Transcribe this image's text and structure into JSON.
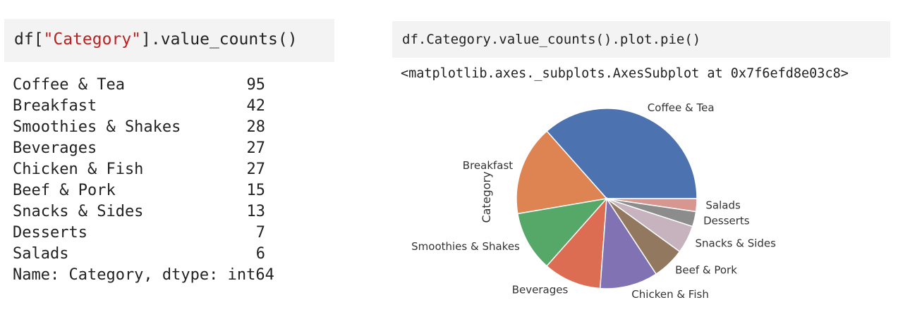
{
  "left_cell": {
    "code_prefix": "df[",
    "code_string": "\"Category\"",
    "code_suffix": "].value_counts()"
  },
  "value_counts": {
    "rows": [
      {
        "category": "Coffee & Tea",
        "count": "95"
      },
      {
        "category": "Breakfast",
        "count": "42"
      },
      {
        "category": "Smoothies & Shakes",
        "count": "28"
      },
      {
        "category": "Beverages",
        "count": "27"
      },
      {
        "category": "Chicken & Fish",
        "count": "27"
      },
      {
        "category": "Beef & Pork",
        "count": "15"
      },
      {
        "category": "Snacks & Sides",
        "count": "13"
      },
      {
        "category": "Desserts",
        "count": "7"
      },
      {
        "category": "Salads",
        "count": "6"
      }
    ],
    "footer": "Name: Category, dtype: int64"
  },
  "right_cell": {
    "code": "df.Category.value_counts().plot.pie()",
    "output_repr": "<matplotlib.axes._subplots.AxesSubplot at 0x7f6efd8e03c8>"
  },
  "chart_data": {
    "type": "pie",
    "categories": [
      "Coffee & Tea",
      "Breakfast",
      "Smoothies & Shakes",
      "Beverages",
      "Chicken & Fish",
      "Beef & Pork",
      "Snacks & Sides",
      "Desserts",
      "Salads"
    ],
    "values": [
      95,
      42,
      28,
      27,
      27,
      15,
      13,
      7,
      6
    ],
    "colors": [
      "#4c72b0",
      "#dd8452",
      "#55a868",
      "#dd6d52",
      "#8172b3",
      "#937860",
      "#c7b3bd",
      "#8c8c8c",
      "#d7968f"
    ],
    "ylabel": "Category",
    "title": "",
    "legend": "none"
  }
}
